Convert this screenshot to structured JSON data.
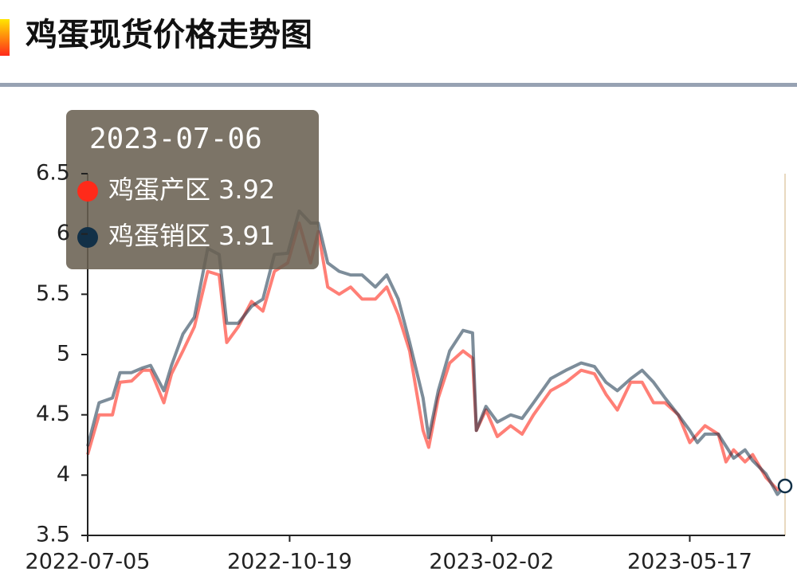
{
  "chart_data": {
    "type": "line",
    "title": "鸡蛋现货价格走势图",
    "x": [
      "2022-07-05",
      "2022-07-11",
      "2022-07-18",
      "2022-07-22",
      "2022-07-28",
      "2022-08-03",
      "2022-08-07",
      "2022-08-14",
      "2022-08-18",
      "2022-08-24",
      "2022-08-30",
      "2022-09-06",
      "2022-09-12",
      "2022-09-16",
      "2022-09-22",
      "2022-09-29",
      "2022-10-05",
      "2022-10-11",
      "2022-10-18",
      "2022-10-24",
      "2022-10-30",
      "2022-11-03",
      "2022-11-08",
      "2022-11-14",
      "2022-11-20",
      "2022-11-26",
      "2022-12-03",
      "2022-12-09",
      "2022-12-15",
      "2022-12-21",
      "2022-12-28",
      "2022-12-31",
      "2023-01-05",
      "2023-01-11",
      "2023-01-18",
      "2023-01-23",
      "2023-01-25",
      "2023-01-30",
      "2023-02-05",
      "2023-02-12",
      "2023-02-18",
      "2023-02-24",
      "2023-03-05",
      "2023-03-13",
      "2023-03-21",
      "2023-03-28",
      "2023-04-03",
      "2023-04-09",
      "2023-04-16",
      "2023-04-22",
      "2023-04-28",
      "2023-05-04",
      "2023-05-11",
      "2023-05-17",
      "2023-05-21",
      "2023-05-25",
      "2023-06-01",
      "2023-06-05",
      "2023-06-09",
      "2023-06-15",
      "2023-06-19",
      "2023-06-26",
      "2023-07-02",
      "2023-07-06"
    ],
    "series": [
      {
        "name": "鸡蛋产区",
        "color": "#ff2a1a",
        "values": [
          4.17,
          4.5,
          4.5,
          4.77,
          4.78,
          4.87,
          4.87,
          4.6,
          4.84,
          5.03,
          5.23,
          5.69,
          5.66,
          5.1,
          5.23,
          5.44,
          5.36,
          5.69,
          5.76,
          6.09,
          5.76,
          6.02,
          5.56,
          5.5,
          5.56,
          5.46,
          5.46,
          5.56,
          5.33,
          5.03,
          4.37,
          4.23,
          4.64,
          4.93,
          5.03,
          4.97,
          4.37,
          4.54,
          4.32,
          4.41,
          4.34,
          4.5,
          4.7,
          4.77,
          4.87,
          4.84,
          4.67,
          4.54,
          4.77,
          4.77,
          4.6,
          4.6,
          4.5,
          4.27,
          4.34,
          4.41,
          4.34,
          4.11,
          4.21,
          4.11,
          4.17,
          3.98,
          3.88,
          3.92
        ]
      },
      {
        "name": "鸡蛋销区",
        "color": "#123047",
        "values": [
          4.24,
          4.6,
          4.64,
          4.85,
          4.85,
          4.89,
          4.91,
          4.7,
          4.91,
          5.17,
          5.31,
          5.88,
          5.83,
          5.26,
          5.26,
          5.4,
          5.46,
          5.83,
          5.84,
          6.19,
          6.09,
          6.09,
          5.76,
          5.69,
          5.66,
          5.66,
          5.56,
          5.66,
          5.46,
          5.1,
          4.64,
          4.31,
          4.7,
          5.03,
          5.2,
          5.18,
          4.37,
          4.57,
          4.44,
          4.5,
          4.47,
          4.6,
          4.8,
          4.87,
          4.93,
          4.9,
          4.77,
          4.7,
          4.8,
          4.87,
          4.77,
          4.64,
          4.5,
          4.37,
          4.27,
          4.34,
          4.34,
          4.24,
          4.14,
          4.21,
          4.12,
          4.01,
          3.84,
          3.91
        ]
      }
    ],
    "xlim": [
      "2022-07-05",
      "2023-07-06"
    ],
    "xticks": [
      "2022-07-05",
      "2022-10-19",
      "2023-02-02",
      "2023-05-17"
    ],
    "ylim": [
      3.5,
      6.5
    ],
    "yticks": [
      3.5,
      4,
      4.5,
      5,
      5.5,
      6,
      6.5
    ]
  }
}
